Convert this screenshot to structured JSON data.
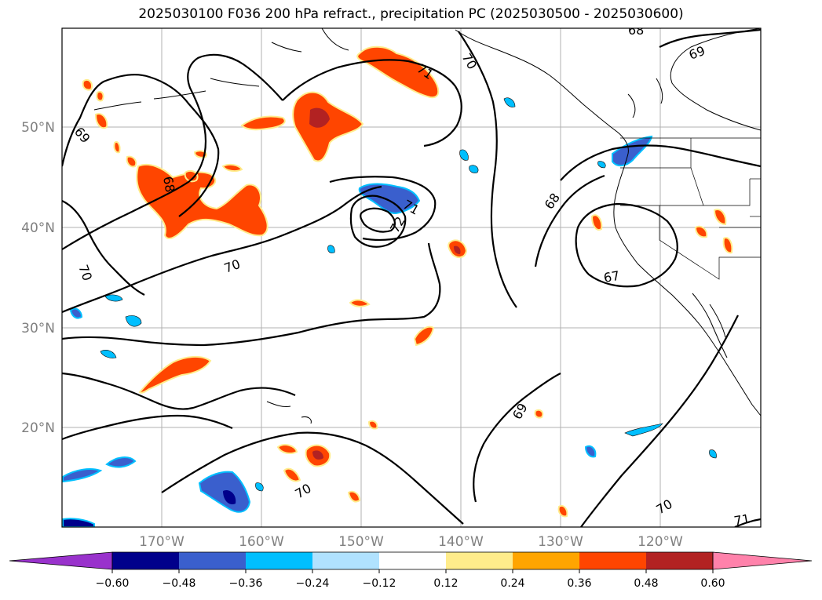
{
  "title": "2025030100 F036 200 hPa refract., precipitation PC (2025030500 - 2025030600)",
  "lat_labels": [
    "50°N",
    "40°N",
    "30°N",
    "20°N"
  ],
  "lon_labels": [
    "170°W",
    "160°W",
    "150°W",
    "140°W",
    "130°W",
    "120°W"
  ],
  "contour_labels": [
    "69",
    "69",
    "68",
    "71",
    "70",
    "71",
    "72",
    "70",
    "68",
    "67",
    "69",
    "70",
    "70",
    "71",
    "70",
    "68"
  ],
  "colorbar": {
    "ticks": [
      "−0.60",
      "−0.48",
      "−0.36",
      "−0.24",
      "−0.12",
      "0.12",
      "0.24",
      "0.36",
      "0.48",
      "0.60"
    ],
    "colors": [
      "#9932cc",
      "#00008b",
      "#3a5fcd",
      "#00bfff",
      "#b0e2ff",
      "#ffffff",
      "#ffec8b",
      "#ffa500",
      "#ff4500",
      "#b22222",
      "#ff82ab"
    ]
  },
  "legend_colors": {
    "neg_strong": "#00008b",
    "neg_mid": "#3a5fcd",
    "neg_light": "#00bfff",
    "neg_pale": "#b0e2ff",
    "pos_pale": "#ffec8b",
    "pos_light": "#ffa500",
    "pos_mid": "#ff4500",
    "pos_strong": "#b22222"
  }
}
